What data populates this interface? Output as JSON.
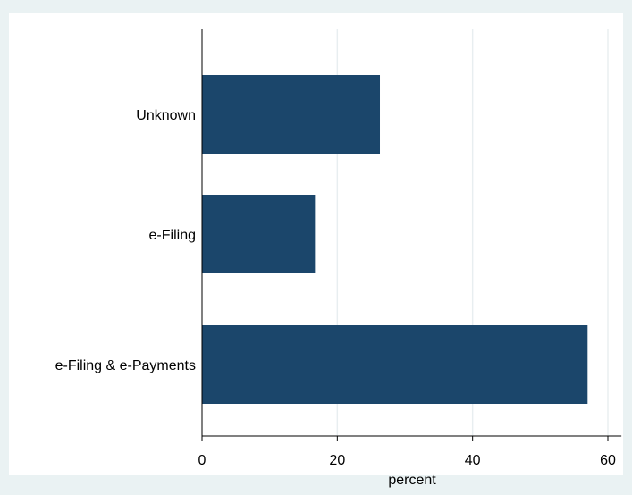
{
  "chart_data": {
    "type": "bar",
    "orientation": "horizontal",
    "categories": [
      "Unknown",
      "e-Filing",
      "e-Filing & e-Payments"
    ],
    "values": [
      26.3,
      16.7,
      57.0
    ],
    "xlabel": "percent",
    "ylabel": "",
    "xlim": [
      0,
      62
    ],
    "xticks": [
      0,
      20,
      40,
      60
    ],
    "grid": true,
    "legend": "none",
    "colors": {
      "bar": "#1b466b",
      "plot_background": "#ffffff",
      "outer_background": "#eaf2f3",
      "gridline": "#e8eef0",
      "axis": "#000000"
    }
  }
}
